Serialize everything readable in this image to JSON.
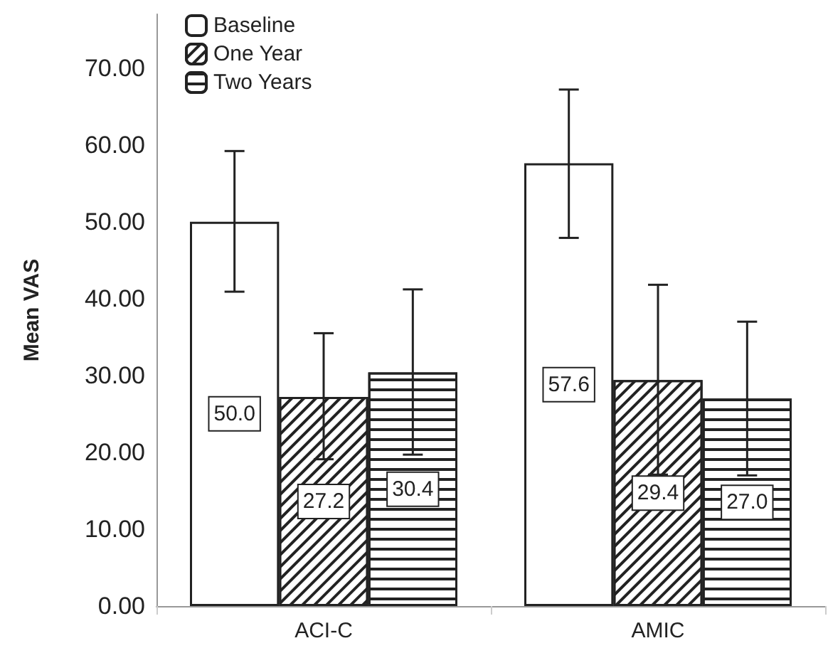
{
  "chart_data": {
    "type": "bar",
    "ylabel": "Mean VAS",
    "categories": [
      "ACI-C",
      "AMIC"
    ],
    "series": [
      {
        "name": "Baseline",
        "color": "#ffffff",
        "values": [
          50.0,
          57.6
        ],
        "value_labels": [
          "50.0",
          "57.6"
        ],
        "errors": [
          [
            40.9,
            59.2
          ],
          [
            47.9,
            67.2
          ]
        ]
      },
      {
        "name": "One Year",
        "color": "#ffffff",
        "values": [
          27.2,
          29.4
        ],
        "value_labels": [
          "27.2",
          "29.4"
        ],
        "errors": [
          [
            19.1,
            35.5
          ],
          [
            17.1,
            41.8
          ]
        ]
      },
      {
        "name": "Two Years",
        "color": "#ffffff",
        "values": [
          30.4,
          27.0
        ],
        "value_labels": [
          "30.4",
          "27.0"
        ],
        "errors": [
          [
            19.7,
            41.2
          ],
          [
            17.0,
            37.0
          ]
        ]
      }
    ],
    "ylim": [
      0,
      77
    ],
    "yticks": [
      {
        "value": 0,
        "label": "0.00"
      },
      {
        "value": 10,
        "label": "10.00"
      },
      {
        "value": 20,
        "label": "20.00"
      },
      {
        "value": 30,
        "label": "30.00"
      },
      {
        "value": 40,
        "label": "40.00"
      },
      {
        "value": 50,
        "label": "50.00"
      },
      {
        "value": 60,
        "label": "60.00"
      },
      {
        "value": 70,
        "label": "70.00"
      }
    ],
    "grid": false,
    "legend": "top left"
  }
}
